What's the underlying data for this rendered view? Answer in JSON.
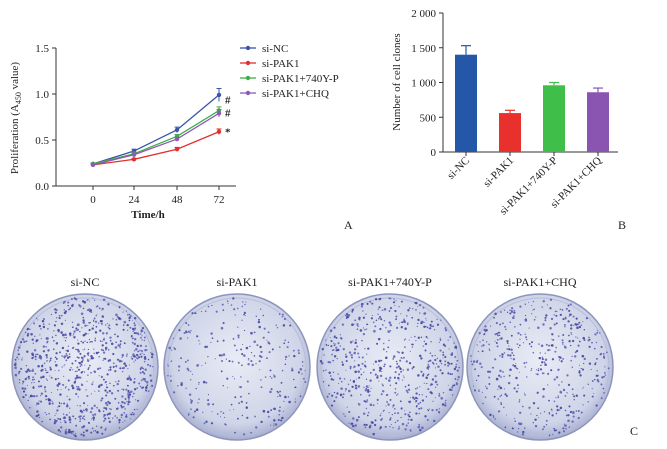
{
  "chart_data": [
    {
      "panel": "A",
      "type": "line",
      "xlabel": "Time/h",
      "ylabel_main": "Proliferation (A",
      "ylabel_sub": "450",
      "ylabel_end": " value)",
      "x": [
        0,
        24,
        48,
        72
      ],
      "x_ticks": [
        "0",
        "24",
        "48",
        "72"
      ],
      "y_ticks": [
        "0.0",
        "0.5",
        "1.0",
        "1.5"
      ],
      "ylim": [
        0,
        1.5
      ],
      "series": [
        {
          "name": "si-NC",
          "color": "#3a55a8",
          "values": [
            0.24,
            0.38,
            0.61,
            0.99
          ],
          "err": [
            0.01,
            0.02,
            0.03,
            0.07
          ],
          "marker": ""
        },
        {
          "name": "si-PAK1",
          "color": "#e0312e",
          "values": [
            0.23,
            0.29,
            0.4,
            0.59
          ],
          "err": [
            0.01,
            0.01,
            0.02,
            0.03
          ],
          "marker": "*"
        },
        {
          "name": "si-PAK1+740Y-P",
          "color": "#3fae49",
          "values": [
            0.24,
            0.35,
            0.54,
            0.82
          ],
          "err": [
            0.01,
            0.02,
            0.02,
            0.04
          ],
          "marker": "#"
        },
        {
          "name": "si-PAK1+CHQ",
          "color": "#8e5ab5",
          "values": [
            0.23,
            0.34,
            0.51,
            0.79
          ],
          "err": [
            0.01,
            0.02,
            0.02,
            0.04
          ],
          "marker": "#"
        }
      ]
    },
    {
      "panel": "B",
      "type": "bar",
      "ylabel": "Number of cell clones",
      "categories": [
        "si-NC",
        "si-PAK1",
        "si-PAK1+740Y-P",
        "si-PAK1+CHQ"
      ],
      "values": [
        1400,
        560,
        960,
        860
      ],
      "err": [
        130,
        40,
        40,
        60
      ],
      "colors": [
        "#2457a8",
        "#e8302c",
        "#3fbf4a",
        "#8a55b0"
      ],
      "y_ticks": [
        "0",
        "500",
        "1 000",
        "1 500",
        "2 000"
      ],
      "ylim": [
        0,
        2000
      ]
    }
  ],
  "panel_c": {
    "label": "C",
    "dishes": [
      {
        "label": "si-NC",
        "density": 1.0
      },
      {
        "label": "si-PAK1",
        "density": 0.33
      },
      {
        "label": "si-PAK1+740Y-P",
        "density": 0.72
      },
      {
        "label": "si-PAK1+CHQ",
        "density": 0.55
      }
    ]
  }
}
